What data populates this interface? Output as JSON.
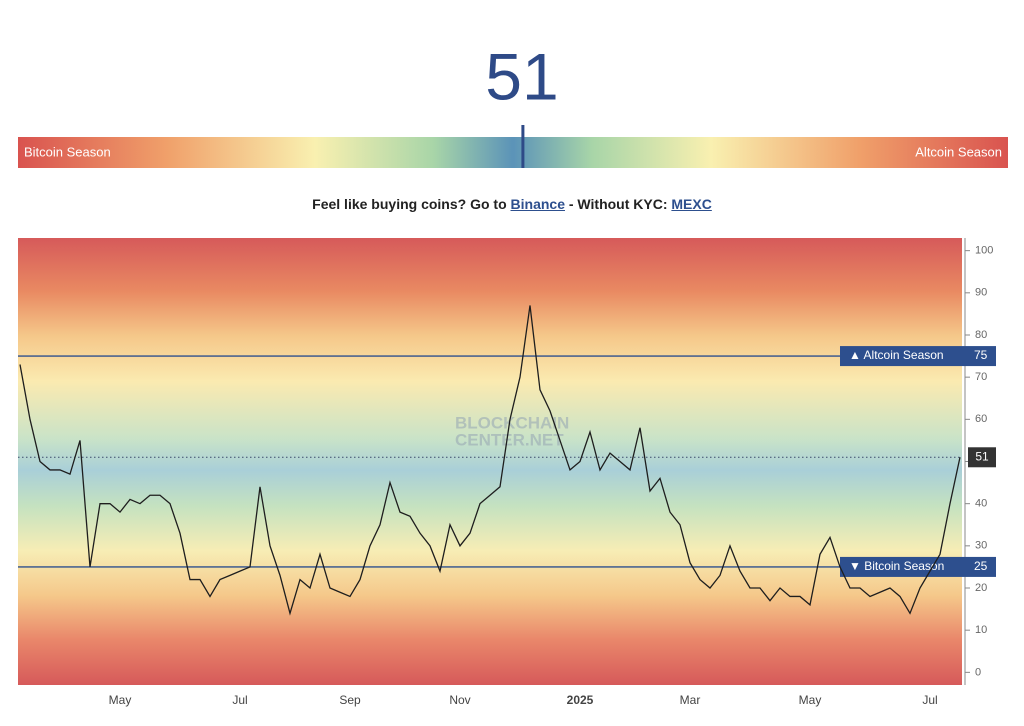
{
  "header": {
    "index": 51,
    "gauge_lim": [
      0,
      100
    ],
    "left_label": "Bitcoin Season",
    "right_label": "Altcoin Season"
  },
  "promo": {
    "text_before": "Feel like buying coins? Go to",
    "link1": "Binance",
    "text_middle": "- Without KYC:",
    "link2": "MEXC"
  },
  "chart_data": {
    "type": "line",
    "watermark": [
      "BLOCKCHAIN",
      "CENTER.NET"
    ],
    "categories": [
      null,
      null,
      null,
      null,
      null,
      null,
      null,
      null,
      null,
      null,
      "May",
      null,
      null,
      null,
      null,
      null,
      null,
      null,
      null,
      null,
      null,
      null,
      "Jul",
      null,
      null,
      null,
      null,
      null,
      null,
      null,
      null,
      null,
      null,
      "Sep",
      null,
      null,
      null,
      null,
      null,
      null,
      null,
      null,
      null,
      null,
      "Nov",
      null,
      null,
      null,
      null,
      null,
      null,
      null,
      null,
      null,
      null,
      null,
      "2025",
      null,
      null,
      null,
      null,
      null,
      null,
      null,
      null,
      null,
      null,
      "Mar",
      null,
      null,
      null,
      null,
      null,
      null,
      null,
      null,
      null,
      null,
      null,
      "May",
      null,
      null,
      null,
      null,
      null,
      null,
      null,
      null,
      null,
      null,
      null,
      "Jul",
      null,
      null,
      null
    ],
    "series": [
      {
        "color": "#1e1e1e",
        "values": [
          73,
          60,
          50,
          48,
          48,
          47,
          55,
          25,
          40,
          40,
          38,
          41,
          40,
          42,
          42,
          40,
          33,
          22,
          22,
          18,
          22,
          23,
          24,
          25,
          44,
          30,
          23,
          14,
          22,
          20,
          28,
          20,
          19,
          18,
          22,
          30,
          35,
          45,
          38,
          37,
          33,
          30,
          24,
          35,
          30,
          33,
          40,
          42,
          44,
          60,
          70,
          87,
          67,
          62,
          55,
          48,
          50,
          57,
          48,
          52,
          50,
          48,
          58,
          43,
          46,
          38,
          35,
          26,
          22,
          20,
          23,
          30,
          24,
          20,
          20,
          17,
          20,
          18,
          18,
          16,
          28,
          32,
          25,
          20,
          20,
          18,
          19,
          20,
          18,
          14,
          20,
          24,
          28,
          40,
          51
        ]
      }
    ],
    "ylim": [
      -3,
      103
    ],
    "yticks": [
      0,
      10,
      20,
      30,
      40,
      50,
      60,
      70,
      80,
      90,
      100
    ],
    "grid": false,
    "reference_lines": [
      {
        "label": "▲ Altcoin Season",
        "value": 75
      },
      {
        "label": "▼ Bitcoin Season",
        "value": 25
      }
    ],
    "reference_color": "#2d4f8e"
  }
}
